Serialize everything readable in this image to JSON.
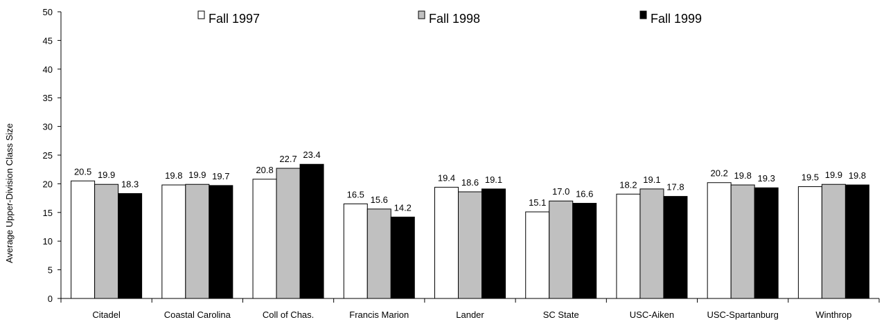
{
  "chart_data": {
    "type": "bar",
    "title": "",
    "xlabel": "",
    "ylabel": "Average Upper-Division Class Size",
    "ylim": [
      0,
      50
    ],
    "yticks": [
      0,
      5,
      10,
      15,
      20,
      25,
      30,
      35,
      40,
      45,
      50
    ],
    "grid": false,
    "legend_position": "top",
    "categories": [
      "Citadel",
      "Coastal Carolina",
      "Coll of Chas.",
      "Francis Marion",
      "Lander",
      "SC State",
      "USC-Aiken",
      "USC-Spartanburg",
      "Winthrop"
    ],
    "series": [
      {
        "name": "Fall 1997",
        "color": "#ffffff",
        "values": [
          20.5,
          19.8,
          20.8,
          16.5,
          19.4,
          15.1,
          18.2,
          20.2,
          19.5
        ]
      },
      {
        "name": "Fall 1998",
        "color": "#c0c0c0",
        "values": [
          19.9,
          19.9,
          22.7,
          15.6,
          18.6,
          17.0,
          19.1,
          19.8,
          19.9
        ]
      },
      {
        "name": "Fall 1999",
        "color": "#000000",
        "values": [
          18.3,
          19.7,
          23.4,
          14.2,
          19.1,
          16.6,
          17.8,
          19.3,
          19.8
        ]
      }
    ]
  }
}
